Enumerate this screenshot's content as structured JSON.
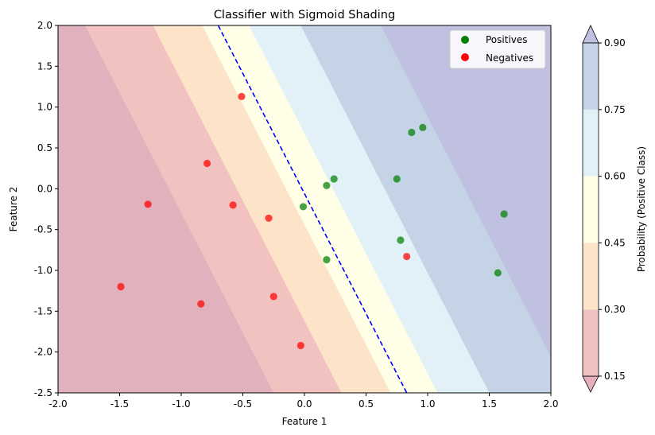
{
  "chart_data": {
    "type": "scatter",
    "title": "Classifier with Sigmoid Shading",
    "xlabel": "Feature 1",
    "ylabel": "Feature 2",
    "xlim": [
      -2.0,
      2.0
    ],
    "ylim": [
      -2.5,
      2.0
    ],
    "xticks": [
      "-2.0",
      "-1.5",
      "-1.0",
      "-0.5",
      "0.0",
      "0.5",
      "1.0",
      "1.5",
      "2.0"
    ],
    "yticks": [
      "-2.5",
      "-2.0",
      "-1.5",
      "-1.0",
      "-0.5",
      "0.0",
      "0.5",
      "1.0",
      "1.5",
      "2.0"
    ],
    "grid": false,
    "legend_position": "top-right",
    "series": [
      {
        "name": "Positives",
        "color": "#008000",
        "points": [
          [
            0.96,
            0.75
          ],
          [
            0.87,
            0.69
          ],
          [
            0.75,
            0.12
          ],
          [
            1.62,
            -0.31
          ],
          [
            0.78,
            -0.63
          ],
          [
            1.57,
            -1.03
          ],
          [
            0.24,
            0.12
          ],
          [
            0.18,
            0.04
          ],
          [
            -0.01,
            -0.22
          ],
          [
            0.18,
            -0.87
          ]
        ]
      },
      {
        "name": "Negatives",
        "color": "#ff0000",
        "points": [
          [
            -0.51,
            1.13
          ],
          [
            -0.79,
            0.31
          ],
          [
            -1.27,
            -0.19
          ],
          [
            -0.58,
            -0.2
          ],
          [
            -0.29,
            -0.36
          ],
          [
            -1.49,
            -1.2
          ],
          [
            -0.84,
            -1.41
          ],
          [
            -0.25,
            -1.32
          ],
          [
            -0.03,
            -1.92
          ],
          [
            0.83,
            -0.83
          ]
        ]
      }
    ],
    "decision_boundary": {
      "style": "dashed",
      "color": "#0000ff",
      "x_at_top": -0.7,
      "x_at_bottom": 0.83
    },
    "probability_bands": [
      {
        "from": 0.15,
        "to": 0.3,
        "color": "#e2aab6",
        "x_at_top": -0.75,
        "x_at_bottom": -0.25
      },
      {
        "from": 0.3,
        "to": 0.45,
        "color": "#f2c2c0",
        "x_at_top": -0.15,
        "x_at_bottom": 0.3
      },
      {
        "from": 0.45,
        "to": 0.6,
        "color": "#fde3c8",
        "x_at_top": -0.7,
        "x_at_bottom": 0.7
      },
      {
        "from": 0.6,
        "to": 0.75,
        "color": "#feffe6",
        "x_at_top": -0.3,
        "x_at_bottom": 1.08
      },
      {
        "from": 0.75,
        "to": 0.9,
        "color": "#e1f1f7",
        "x_at_top": 0.0,
        "x_at_bottom": 1.5
      },
      {
        "from": 0.9,
        "to": 1.0,
        "color": "#c5d3e6",
        "x_at_top": 0.67,
        "x_at_bottom": 2.15
      }
    ],
    "band_leftmost_color": "#e2b1be",
    "band_far_right_color": "#c0c1e0",
    "colorbar": {
      "label": "Probability (Positive Class)",
      "ticks": [
        "0.15",
        "0.30",
        "0.45",
        "0.60",
        "0.75",
        "0.90"
      ],
      "segments": [
        "#e4b0bc",
        "#f1c2c1",
        "#fde3c8",
        "#feffe6",
        "#e1f1f7",
        "#c5d3e6"
      ],
      "under_color": "#e4b0bc",
      "over_color": "#c0c1e0"
    }
  }
}
